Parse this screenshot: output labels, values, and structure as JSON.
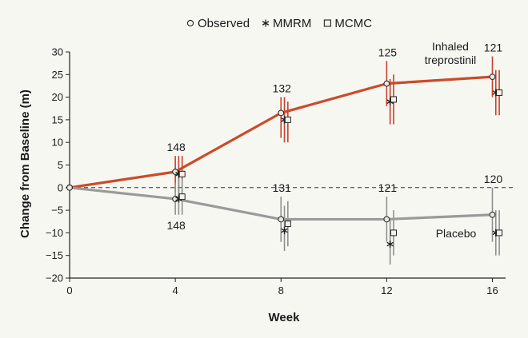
{
  "chart_data": {
    "type": "line",
    "title": "",
    "xlabel": "Week",
    "ylabel": "Change from Baseline (m)",
    "xlim": [
      0,
      16.5
    ],
    "ylim": [
      -20,
      30
    ],
    "xticks": [
      0,
      4,
      8,
      12,
      16
    ],
    "yticks": [
      -20,
      -15,
      -10,
      -5,
      0,
      5,
      10,
      15,
      20,
      25,
      30
    ],
    "x": [
      0,
      4,
      8,
      12,
      16
    ],
    "legend": [
      {
        "label": "Observed",
        "marker": "circle"
      },
      {
        "label": "MMRM",
        "marker": "asterisk"
      },
      {
        "label": "MCMC",
        "marker": "square"
      }
    ],
    "series": [
      {
        "name": "Inhaled treprostinil",
        "label_lines": [
          "Inhaled",
          "treprostinil"
        ],
        "color": "#cc4a2a",
        "observed": [
          0,
          3.5,
          16.5,
          23,
          24.5
        ],
        "mmrm": [
          null,
          3.0,
          15.0,
          19.0,
          21.0
        ],
        "mmrm_err": [
          null,
          [
            -2,
            7
          ],
          [
            10,
            20
          ],
          [
            14,
            24
          ],
          [
            16,
            26
          ]
        ],
        "mcmc": [
          null,
          3.0,
          15.0,
          19.5,
          21.0
        ],
        "mcmc_err": [
          null,
          [
            -2,
            7
          ],
          [
            10,
            19
          ],
          [
            14,
            25
          ],
          [
            16,
            26
          ]
        ],
        "observed_err": [
          null,
          [
            -1,
            7
          ],
          [
            11,
            20
          ],
          [
            18,
            28
          ],
          [
            20,
            29
          ]
        ],
        "n_labels": [
          "148",
          "132",
          "125",
          "121"
        ]
      },
      {
        "name": "Placebo",
        "label_lines": [
          "Placebo"
        ],
        "color": "#9a9a9a",
        "observed": [
          0,
          -2.5,
          -7,
          -7,
          -6
        ],
        "mmrm": [
          null,
          -2.5,
          -9.5,
          -12.5,
          -10.0
        ],
        "mmrm_err": [
          null,
          [
            -6,
            2
          ],
          [
            -14,
            -4
          ],
          [
            -17,
            -7
          ],
          [
            -15,
            -5
          ]
        ],
        "mcmc": [
          null,
          -2.0,
          -8.0,
          -10.0,
          -10.0
        ],
        "mcmc_err": [
          null,
          [
            -6,
            2
          ],
          [
            -13,
            -3
          ],
          [
            -15,
            -5
          ],
          [
            -15,
            -5
          ]
        ],
        "observed_err": [
          null,
          [
            -6,
            1
          ],
          [
            -12,
            -2
          ],
          [
            -12,
            -2
          ],
          [
            -12,
            0
          ]
        ],
        "n_labels": [
          "148",
          "131",
          "121",
          "120"
        ]
      }
    ],
    "reference_line": 0
  }
}
